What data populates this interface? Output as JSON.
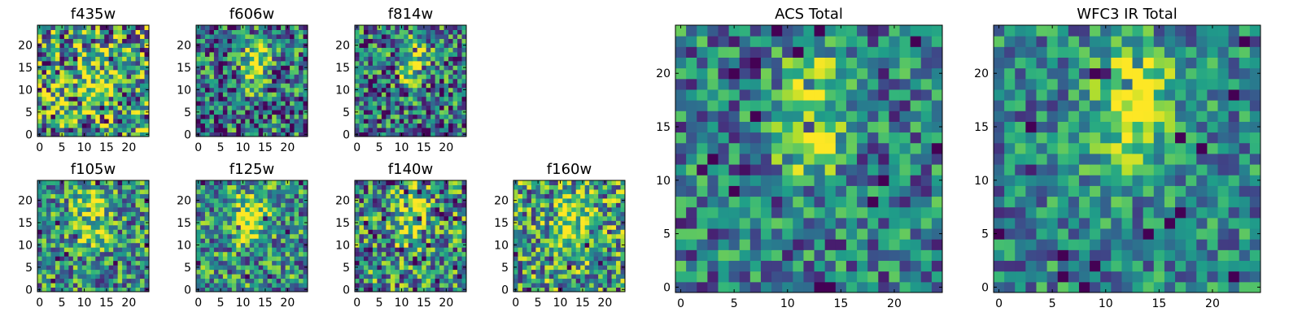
{
  "chart_data": [
    {
      "type": "heatmap",
      "title": "f435w",
      "xticks": [
        "0",
        "5",
        "10",
        "15",
        "20"
      ],
      "yticks": [
        "0",
        "5",
        "10",
        "15",
        "20"
      ],
      "xlim": [
        0,
        24
      ],
      "ylim": [
        0,
        24
      ],
      "colormap": "viridis",
      "grid": false,
      "blobs": [
        [
          13,
          11,
          3,
          0.35
        ]
      ],
      "noise": 0.55,
      "base": 0.55,
      "seed": 11
    },
    {
      "type": "heatmap",
      "title": "f606w",
      "xticks": [
        "0",
        "5",
        "10",
        "15",
        "20"
      ],
      "yticks": [
        "0",
        "5",
        "10",
        "15",
        "20"
      ],
      "xlim": [
        0,
        24
      ],
      "ylim": [
        0,
        24
      ],
      "colormap": "viridis",
      "grid": false,
      "blobs": [
        [
          13,
          19,
          2.2,
          0.55
        ],
        [
          12,
          13,
          2.2,
          0.45
        ]
      ],
      "noise": 0.45,
      "base": 0.4,
      "seed": 23
    },
    {
      "type": "heatmap",
      "title": "f814w",
      "xticks": [
        "0",
        "5",
        "10",
        "15",
        "20"
      ],
      "yticks": [
        "0",
        "5",
        "10",
        "15",
        "20"
      ],
      "xlim": [
        0,
        24
      ],
      "ylim": [
        0,
        24
      ],
      "colormap": "viridis",
      "grid": false,
      "blobs": [
        [
          13,
          19,
          2.2,
          0.55
        ],
        [
          12,
          13,
          2.0,
          0.45
        ]
      ],
      "noise": 0.45,
      "base": 0.4,
      "seed": 37
    },
    {
      "type": "heatmap",
      "title": "f105w",
      "xticks": [
        "0",
        "5",
        "10",
        "15",
        "20"
      ],
      "yticks": [
        "0",
        "5",
        "10",
        "15",
        "20"
      ],
      "xlim": [
        0,
        24
      ],
      "ylim": [
        0,
        24
      ],
      "colormap": "viridis",
      "grid": false,
      "blobs": [
        [
          12,
          19,
          2.5,
          0.5
        ],
        [
          12,
          12,
          2.5,
          0.3
        ]
      ],
      "noise": 0.4,
      "base": 0.5,
      "seed": 41
    },
    {
      "type": "heatmap",
      "title": "f125w",
      "xticks": [
        "0",
        "5",
        "10",
        "15",
        "20"
      ],
      "yticks": [
        "0",
        "5",
        "10",
        "15",
        "20"
      ],
      "xlim": [
        0,
        24
      ],
      "ylim": [
        0,
        24
      ],
      "colormap": "viridis",
      "grid": false,
      "blobs": [
        [
          12,
          18,
          3,
          0.4
        ],
        [
          11,
          13,
          2.2,
          0.35
        ]
      ],
      "noise": 0.4,
      "base": 0.5,
      "seed": 53
    },
    {
      "type": "heatmap",
      "title": "f140w",
      "xticks": [
        "0",
        "5",
        "10",
        "15",
        "20"
      ],
      "yticks": [
        "0",
        "5",
        "10",
        "15",
        "20"
      ],
      "xlim": [
        0,
        24
      ],
      "ylim": [
        0,
        24
      ],
      "colormap": "viridis",
      "grid": false,
      "blobs": [
        [
          12,
          19,
          2.5,
          0.45
        ],
        [
          11,
          13,
          2.2,
          0.3
        ]
      ],
      "noise": 0.45,
      "base": 0.5,
      "seed": 67
    },
    {
      "type": "heatmap",
      "title": "f160w",
      "xticks": [
        "0",
        "5",
        "10",
        "15",
        "20"
      ],
      "yticks": [
        "0",
        "5",
        "10",
        "15",
        "20"
      ],
      "xlim": [
        0,
        24
      ],
      "ylim": [
        0,
        24
      ],
      "colormap": "viridis",
      "grid": false,
      "blobs": [
        [
          13,
          18,
          2.5,
          0.45
        ],
        [
          11,
          12,
          2.2,
          0.4
        ]
      ],
      "noise": 0.45,
      "base": 0.55,
      "seed": 79
    },
    {
      "type": "heatmap",
      "title": "ACS Total",
      "xticks": [
        "0",
        "5",
        "10",
        "15",
        "20"
      ],
      "yticks": [
        "0",
        "5",
        "10",
        "15",
        "20"
      ],
      "xlim": [
        0,
        24
      ],
      "ylim": [
        0,
        24
      ],
      "colormap": "viridis",
      "grid": false,
      "blobs": [
        [
          13,
          19,
          2.0,
          0.55
        ],
        [
          12,
          13,
          2.0,
          0.5
        ]
      ],
      "noise": 0.35,
      "base": 0.42,
      "seed": 97
    },
    {
      "type": "heatmap",
      "title": "WFC3 IR Total",
      "xticks": [
        "0",
        "5",
        "10",
        "15",
        "20"
      ],
      "yticks": [
        "0",
        "5",
        "10",
        "15",
        "20"
      ],
      "xlim": [
        0,
        24
      ],
      "ylim": [
        0,
        24
      ],
      "colormap": "viridis",
      "grid": false,
      "blobs": [
        [
          13,
          19,
          2.6,
          0.5
        ],
        [
          12,
          12.5,
          2.4,
          0.4
        ]
      ],
      "noise": 0.3,
      "base": 0.45,
      "seed": 113
    }
  ]
}
